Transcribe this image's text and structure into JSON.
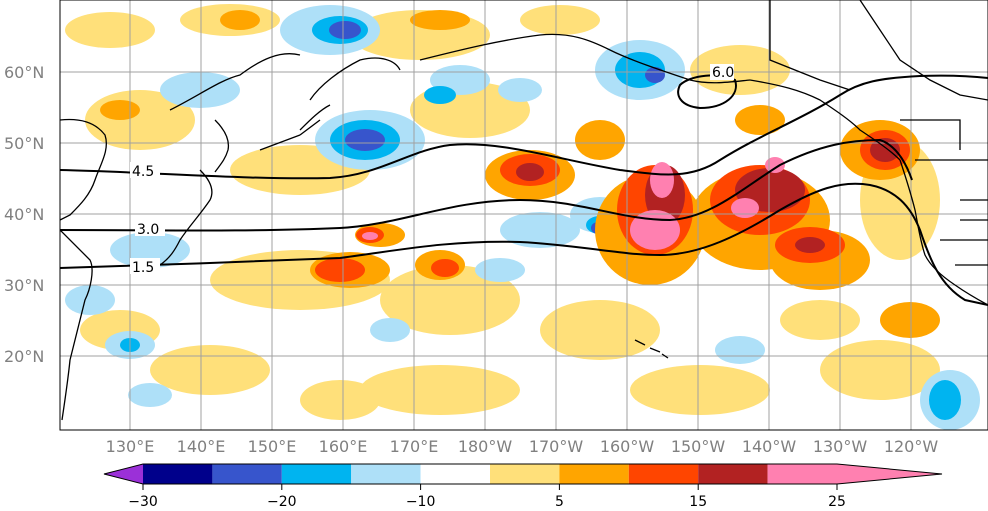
{
  "map": {
    "lat_labels": [
      "60°N",
      "50°N",
      "40°N",
      "30°N",
      "20°N"
    ],
    "lon_labels": [
      "130°E",
      "140°E",
      "150°E",
      "160°E",
      "170°E",
      "180°W",
      "170°W",
      "160°W",
      "150°W",
      "140°W",
      "130°W",
      "120°W"
    ],
    "contour_labels": [
      "4.5",
      "3.0",
      "1.5",
      "6.0"
    ]
  },
  "colorbar": {
    "tick_labels": [
      "−30",
      "−20",
      "−10",
      "5",
      "15",
      "25"
    ],
    "colors": [
      "#9b30d8",
      "#00008b",
      "#3755cc",
      "#00b4f0",
      "#aee0f8",
      "#ffffff",
      "#ffe07a",
      "#ffa500",
      "#ff4500",
      "#b22222",
      "#ff80b0"
    ]
  }
}
